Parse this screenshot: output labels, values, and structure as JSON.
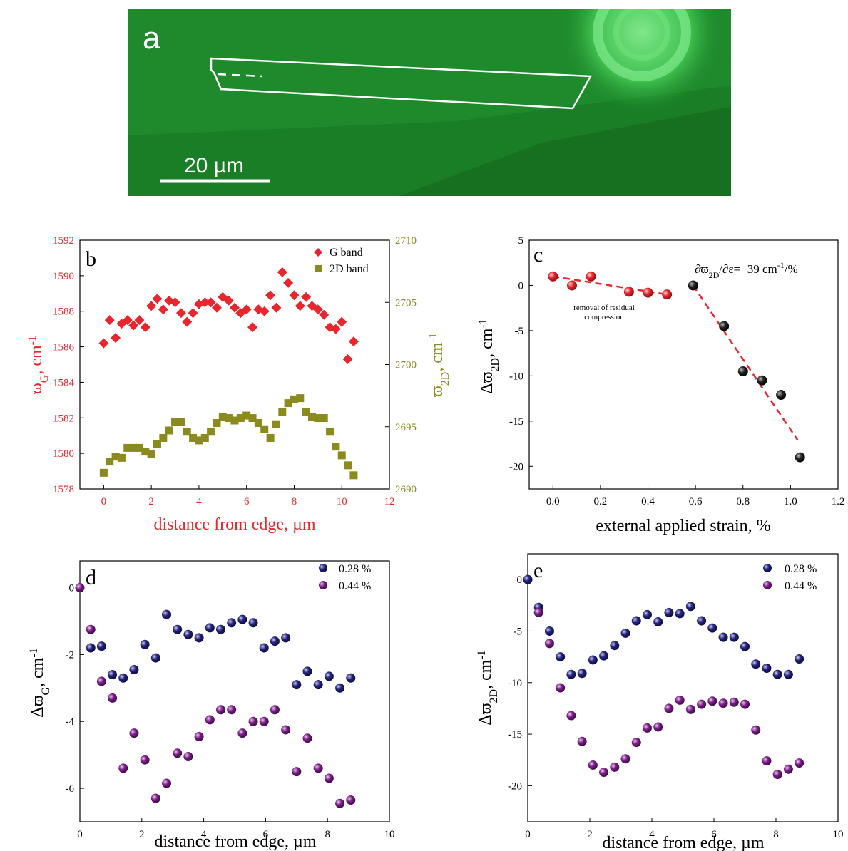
{
  "panel_a": {
    "letter": "a",
    "scalebar_label": "20 µm",
    "colors": {
      "bg": "#1e8a2c",
      "bg_dark": "#16701f",
      "outline": "#ffffff"
    }
  },
  "colors": {
    "red": "#e8262d",
    "olive": "#8a8a1e",
    "black": "#111111",
    "navy": "#23237a",
    "purple": "#7a1f86"
  },
  "chart_data": [
    {
      "panel": "b",
      "type": "scatter",
      "letter": "b",
      "xlabel": "distance from edge, µm",
      "ylabel_left": {
        "base": "ϖ",
        "sub": "G",
        "tail": ", cm",
        "sup": "-1"
      },
      "ylabel_right": {
        "base": "ϖ",
        "sub": "2D",
        "tail": ", cm",
        "sup": "-1"
      },
      "xlim": [
        -1,
        12
      ],
      "xticks": [
        0,
        2,
        4,
        6,
        8,
        10,
        12
      ],
      "ylim_left": [
        1578,
        1592
      ],
      "yticks_left": [
        1578,
        1580,
        1582,
        1584,
        1586,
        1588,
        1590,
        1592
      ],
      "ylim_right": [
        2690,
        2710
      ],
      "yticks_right": [
        2690,
        2695,
        2700,
        2705,
        2710
      ],
      "legend": {
        "position": "top-right",
        "entries": [
          "G band",
          "2D band"
        ]
      },
      "series": [
        {
          "name": "G band",
          "axis": "left",
          "marker": "diamond",
          "color": "#e8262d",
          "x": [
            0,
            0.25,
            0.5,
            0.75,
            1.0,
            1.25,
            1.5,
            1.75,
            2.0,
            2.25,
            2.5,
            2.75,
            3.0,
            3.25,
            3.5,
            3.75,
            4.0,
            4.25,
            4.5,
            4.75,
            5.0,
            5.25,
            5.5,
            5.75,
            6.0,
            6.25,
            6.5,
            6.75,
            7.0,
            7.25,
            7.5,
            7.75,
            8.0,
            8.25,
            8.5,
            8.75,
            9.0,
            9.25,
            9.5,
            9.75,
            10.0,
            10.25,
            10.5
          ],
          "y": [
            1586.2,
            1587.5,
            1586.5,
            1587.3,
            1587.5,
            1587.2,
            1587.5,
            1587.1,
            1588.3,
            1588.7,
            1588.1,
            1588.6,
            1588.5,
            1587.9,
            1587.4,
            1587.9,
            1588.4,
            1588.5,
            1588.5,
            1588.2,
            1588.8,
            1588.6,
            1588.2,
            1587.9,
            1588.1,
            1587.1,
            1588.1,
            1588.0,
            1588.9,
            1588.2,
            1590.2,
            1589.6,
            1588.9,
            1588.3,
            1588.8,
            1588.3,
            1588.1,
            1587.8,
            1587.1,
            1587.0,
            1587.4,
            1585.3,
            1586.3
          ]
        },
        {
          "name": "2D band",
          "axis": "right",
          "marker": "square",
          "color": "#8a8a1e",
          "x": [
            0,
            0.25,
            0.5,
            0.75,
            1.0,
            1.25,
            1.5,
            1.75,
            2.0,
            2.25,
            2.5,
            2.75,
            3.0,
            3.25,
            3.5,
            3.75,
            4.0,
            4.25,
            4.5,
            4.75,
            5.0,
            5.25,
            5.5,
            5.75,
            6.0,
            6.25,
            6.5,
            6.75,
            7.0,
            7.25,
            7.5,
            7.75,
            8.0,
            8.25,
            8.5,
            8.75,
            9.0,
            9.25,
            9.5,
            9.75,
            10.0,
            10.25,
            10.5
          ],
          "y": [
            2691.3,
            2692.2,
            2692.6,
            2692.5,
            2693.3,
            2693.3,
            2693.3,
            2693.0,
            2692.8,
            2693.6,
            2694.1,
            2694.7,
            2695.4,
            2695.4,
            2694.6,
            2694.1,
            2693.9,
            2694.1,
            2694.6,
            2695.3,
            2695.8,
            2695.7,
            2695.5,
            2695.7,
            2695.9,
            2695.7,
            2695.3,
            2694.8,
            2694.1,
            2695.2,
            2696.2,
            2696.9,
            2697.2,
            2697.3,
            2696.2,
            2695.8,
            2695.7,
            2695.7,
            2694.6,
            2693.4,
            2692.7,
            2691.9,
            2691.1
          ]
        }
      ]
    },
    {
      "panel": "c",
      "type": "scatter",
      "letter": "c",
      "xlabel": "external applied strain, %",
      "ylabel": {
        "base": "Δϖ",
        "sub": "2D",
        "tail": ", cm",
        "sup": "-1"
      },
      "xlim": [
        -0.1,
        1.2
      ],
      "xticks": [
        0.0,
        0.2,
        0.4,
        0.6,
        0.8,
        1.0,
        1.2
      ],
      "ylim": [
        -22.5,
        5
      ],
      "yticks": [
        5,
        0,
        -5,
        -10,
        -15,
        -20
      ],
      "annotations": {
        "slope": {
          "pre": "∂ϖ",
          "sub": "2D",
          "mid": "/∂ε=−39 cm",
          "sup": "-1",
          "post": "/%"
        },
        "residual_line1": "removal of residual",
        "residual_line2": "compression"
      },
      "series": [
        {
          "name": "",
          "marker": "sphere",
          "color": "#e8262d",
          "x": [
            0.0,
            0.08,
            0.16,
            0.32,
            0.4,
            0.48
          ],
          "y": [
            1.0,
            0.0,
            1.0,
            -0.7,
            -0.8,
            -1.0
          ],
          "fit": {
            "x": [
              0.0,
              0.48
            ],
            "y": [
              1.0,
              -1.0
            ],
            "style": "dashed"
          }
        },
        {
          "name": "",
          "marker": "sphere",
          "color": "#111111",
          "x": [
            0.59,
            0.72,
            0.8,
            0.88,
            0.96,
            1.04
          ],
          "y": [
            0.0,
            -4.5,
            -9.5,
            -10.5,
            -12.1,
            -19.0
          ],
          "fit": {
            "x": [
              0.59,
              1.03
            ],
            "y": [
              0.0,
              -17.1
            ],
            "style": "dashed"
          }
        }
      ]
    },
    {
      "panel": "d",
      "type": "scatter",
      "letter": "d",
      "xlabel": "distance from edge, µm",
      "ylabel": {
        "base": "Δϖ",
        "sub": "G",
        "tail": ", cm",
        "sup": "-1"
      },
      "xlim": [
        0,
        10
      ],
      "xticks": [
        0,
        2,
        4,
        6,
        8,
        10
      ],
      "ylim": [
        -7,
        0.8
      ],
      "yticks": [
        0,
        -2,
        -4,
        -6
      ],
      "legend": {
        "position": "top-right",
        "entries": [
          "0.28 %",
          "0.44 %"
        ]
      },
      "series": [
        {
          "name": "0.28 %",
          "marker": "sphere",
          "color": "#23237a",
          "x": [
            0.35,
            0.7,
            1.05,
            1.4,
            1.75,
            2.1,
            2.45,
            2.8,
            3.15,
            3.5,
            3.85,
            4.2,
            4.55,
            4.9,
            5.25,
            5.6,
            5.95,
            6.3,
            6.65,
            7.0,
            7.35,
            7.7,
            8.05,
            8.4,
            8.75
          ],
          "y": [
            -1.8,
            -1.75,
            -2.6,
            -2.7,
            -2.45,
            -1.7,
            -2.1,
            -0.8,
            -1.25,
            -1.4,
            -1.5,
            -1.2,
            -1.25,
            -1.05,
            -0.95,
            -1.05,
            -1.8,
            -1.6,
            -1.5,
            -2.9,
            -2.5,
            -2.9,
            -2.65,
            -3.0,
            -2.7
          ]
        },
        {
          "name": "0.44 %",
          "marker": "sphere",
          "color": "#7a1f86",
          "x": [
            0,
            0.35,
            0.7,
            1.05,
            1.4,
            1.75,
            2.1,
            2.45,
            2.8,
            3.15,
            3.5,
            3.85,
            4.2,
            4.55,
            4.9,
            5.25,
            5.6,
            5.95,
            6.3,
            6.65,
            7.0,
            7.35,
            7.7,
            8.05,
            8.4,
            8.75
          ],
          "y": [
            0,
            -1.25,
            -2.8,
            -3.3,
            -5.4,
            -4.35,
            -5.15,
            -6.3,
            -5.85,
            -4.95,
            -5.05,
            -4.45,
            -3.95,
            -3.65,
            -3.65,
            -4.35,
            -4.0,
            -4.0,
            -3.65,
            -4.25,
            -5.5,
            -4.5,
            -5.4,
            -5.7,
            -6.45,
            -6.35
          ]
        }
      ]
    },
    {
      "panel": "e",
      "type": "scatter",
      "letter": "e",
      "xlabel": "distance from edge, µm",
      "ylabel": {
        "base": "Δϖ",
        "sub": "2D",
        "tail": ", cm",
        "sup": "-1"
      },
      "xlim": [
        0,
        10
      ],
      "xticks": [
        0,
        2,
        4,
        6,
        8,
        10
      ],
      "ylim": [
        -23.5,
        2.5
      ],
      "yticks": [
        0,
        -5,
        -10,
        -15,
        -20
      ],
      "legend": {
        "position": "top-right",
        "entries": [
          "0.28 %",
          "0.44 %"
        ]
      },
      "series": [
        {
          "name": "0.28 %",
          "marker": "sphere",
          "color": "#23237a",
          "x": [
            0,
            0.35,
            0.7,
            1.05,
            1.4,
            1.75,
            2.1,
            2.45,
            2.8,
            3.15,
            3.5,
            3.85,
            4.2,
            4.55,
            4.9,
            5.25,
            5.6,
            5.95,
            6.3,
            6.65,
            7.0,
            7.35,
            7.7,
            8.05,
            8.4,
            8.75
          ],
          "y": [
            0,
            -2.7,
            -5.0,
            -7.5,
            -9.2,
            -9.1,
            -7.8,
            -7.4,
            -6.4,
            -5.2,
            -4.0,
            -3.4,
            -4.1,
            -3.2,
            -3.3,
            -2.6,
            -4.0,
            -4.7,
            -5.6,
            -5.6,
            -6.5,
            -8.2,
            -8.6,
            -9.2,
            -9.2,
            -7.7
          ]
        },
        {
          "name": "0.44 %",
          "marker": "sphere",
          "color": "#7a1f86",
          "x": [
            0.35,
            0.7,
            1.05,
            1.4,
            1.75,
            2.1,
            2.45,
            2.8,
            3.15,
            3.5,
            3.85,
            4.2,
            4.55,
            4.9,
            5.25,
            5.6,
            5.95,
            6.3,
            6.65,
            7.0,
            7.35,
            7.7,
            8.05,
            8.4,
            8.75
          ],
          "y": [
            -3.2,
            -6.2,
            -10.5,
            -13.2,
            -15.7,
            -18.0,
            -18.7,
            -18.2,
            -17.4,
            -15.8,
            -14.4,
            -14.3,
            -12.5,
            -11.7,
            -12.6,
            -12.1,
            -11.8,
            -12.0,
            -11.9,
            -12.1,
            -14.6,
            -17.6,
            -18.9,
            -18.4,
            -17.8
          ]
        }
      ]
    }
  ]
}
